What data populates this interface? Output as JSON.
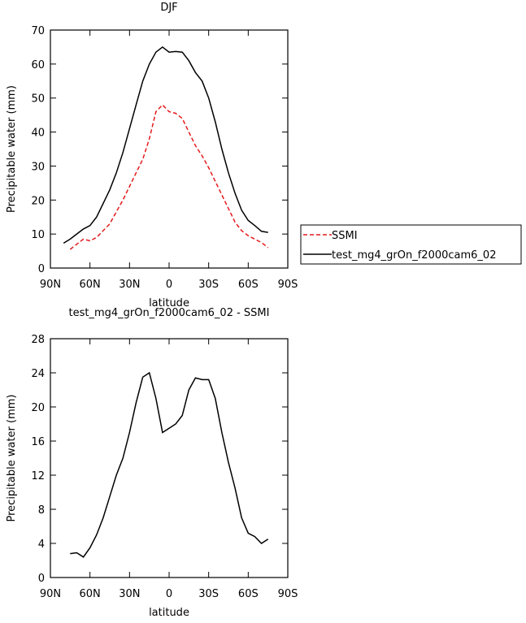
{
  "chart_data": [
    {
      "type": "line",
      "title": "DJF",
      "x_label": "latitude",
      "y_label": "Precipitable water (mm)",
      "x": [
        80,
        75,
        70,
        65,
        60,
        55,
        50,
        45,
        40,
        35,
        30,
        25,
        20,
        15,
        10,
        5,
        0,
        -5,
        -10,
        -15,
        -20,
        -25,
        -30,
        -35,
        -40,
        -45,
        -50,
        -55,
        -60,
        -65,
        -70,
        -75
      ],
      "series": [
        {
          "name": "SSMI",
          "color": "#e41a1c",
          "dash": true,
          "values": [
            null,
            5.5,
            7,
            8.5,
            8,
            9,
            11,
            13,
            16.5,
            20,
            24,
            28,
            32,
            38,
            46,
            48,
            46,
            45.5,
            44,
            40,
            36,
            33,
            29.5,
            25.5,
            21.5,
            17.5,
            13.5,
            11,
            9.5,
            8.5,
            7.5,
            6
          ]
        },
        {
          "name": "test_mg4_grOn_f2000cam6_02",
          "color": "#000000",
          "dash": false,
          "values": [
            7.3,
            8.5,
            10,
            11.5,
            12.5,
            15,
            19,
            23,
            28,
            34,
            41,
            48,
            55,
            60,
            63.5,
            65,
            63.5,
            63.7,
            63.5,
            61,
            57.5,
            55,
            50,
            43,
            35,
            28,
            22,
            17,
            14,
            12.5,
            10.8,
            10.5
          ]
        }
      ],
      "xlim": [
        90,
        -90
      ],
      "xticks": [
        {
          "value": 90,
          "label": "90N"
        },
        {
          "value": 60,
          "label": "60N"
        },
        {
          "value": 30,
          "label": "30N"
        },
        0,
        {
          "value": -30,
          "label": "30S"
        },
        {
          "value": -60,
          "label": "60S"
        },
        {
          "value": -90,
          "label": "90S"
        }
      ],
      "ylim": [
        0,
        70
      ],
      "yticks": [
        0,
        10,
        20,
        30,
        40,
        50,
        60,
        70
      ],
      "legend": "right"
    },
    {
      "type": "line",
      "title": "test_mg4_grOn_f2000cam6_02 - SSMI",
      "x_label": "latitude",
      "y_label": "Precipitable water (mm)",
      "x": [
        75,
        70,
        65,
        60,
        55,
        50,
        45,
        40,
        35,
        30,
        25,
        20,
        15,
        10,
        5,
        0,
        -5,
        -10,
        -15,
        -20,
        -25,
        -30,
        -35,
        -40,
        -45,
        -50,
        -55,
        -60,
        -65,
        -70,
        -75
      ],
      "series": [
        {
          "color": "#000000",
          "dash": false,
          "values": [
            2.8,
            2.9,
            2.4,
            3.5,
            5,
            7,
            9.5,
            12,
            14,
            17,
            20.5,
            23.5,
            24,
            21,
            17,
            17.5,
            18,
            19,
            22,
            23.4,
            23.2,
            23.2,
            21,
            17,
            13.5,
            10.5,
            7,
            5.2,
            4.8,
            4.0,
            4.5
          ]
        }
      ],
      "xlim": [
        90,
        -90
      ],
      "xticks": [
        {
          "value": 90,
          "label": "90N"
        },
        {
          "value": 60,
          "label": "60N"
        },
        {
          "value": 30,
          "label": "30N"
        },
        0,
        {
          "value": -30,
          "label": "30S"
        },
        {
          "value": -60,
          "label": "60S"
        },
        {
          "value": -90,
          "label": "90S"
        }
      ],
      "ylim": [
        0,
        28
      ],
      "yticks": [
        0,
        4,
        8,
        12,
        16,
        20,
        24,
        28
      ]
    }
  ]
}
